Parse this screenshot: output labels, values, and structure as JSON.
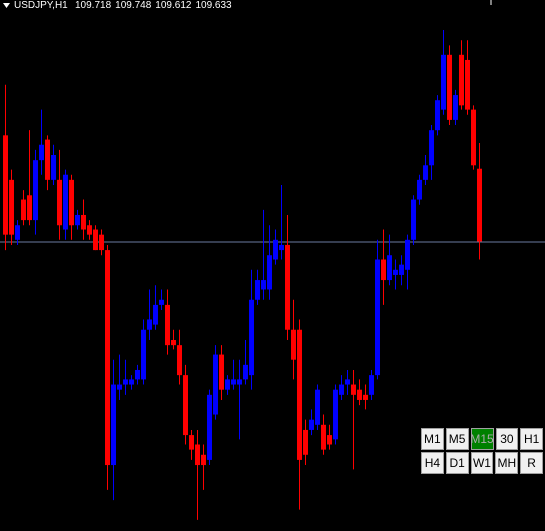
{
  "chart_data": {
    "type": "candlestick",
    "title": "USDJPY,H1",
    "open": [
      109.757,
      109.705,
      109.635,
      109.682,
      109.687,
      109.658,
      109.728,
      109.752,
      109.705,
      109.705,
      109.647,
      109.705,
      109.652,
      109.664,
      109.652,
      109.647,
      109.641,
      109.623,
      109.372,
      109.46,
      109.466,
      109.466,
      109.472,
      109.472,
      109.53,
      109.536,
      109.559,
      109.559,
      109.518,
      109.512,
      109.477,
      109.407,
      109.396,
      109.384,
      109.378,
      109.431,
      109.501,
      109.46,
      109.466,
      109.466,
      109.472,
      109.477,
      109.565,
      109.577,
      109.577,
      109.612,
      109.623,
      109.629,
      109.53,
      109.53,
      109.413,
      109.413,
      109.419,
      109.419,
      109.407,
      109.402,
      109.454,
      109.466,
      109.466,
      109.46,
      109.454,
      109.454,
      109.477,
      109.612,
      109.588,
      109.594,
      109.594,
      109.6,
      109.635,
      109.682,
      109.705,
      109.722,
      109.763,
      109.787,
      109.851,
      109.775,
      109.851,
      109.845,
      109.787,
      109.718
    ],
    "high": [
      109.816,
      109.717,
      109.658,
      109.693,
      109.763,
      109.74,
      109.787,
      109.757,
      109.746,
      109.74,
      109.717,
      109.711,
      109.67,
      109.682,
      109.658,
      109.652,
      109.647,
      109.629,
      109.495,
      109.501,
      109.495,
      109.477,
      109.489,
      109.542,
      109.577,
      109.582,
      109.577,
      109.577,
      109.53,
      109.53,
      109.489,
      109.413,
      109.413,
      109.396,
      109.46,
      109.512,
      109.512,
      109.477,
      109.495,
      109.495,
      109.518,
      109.6,
      109.6,
      109.67,
      109.652,
      109.647,
      109.699,
      109.664,
      109.565,
      109.542,
      109.425,
      109.437,
      109.466,
      109.431,
      109.419,
      109.466,
      109.477,
      109.483,
      109.483,
      109.472,
      109.466,
      109.483,
      109.635,
      109.647,
      109.641,
      109.612,
      109.617,
      109.641,
      109.687,
      109.711,
      109.734,
      109.769,
      109.804,
      109.88,
      109.862,
      109.81,
      109.868,
      109.868,
      109.792,
      109.748
    ],
    "low": [
      109.623,
      109.629,
      109.629,
      109.652,
      109.652,
      109.641,
      109.711,
      109.693,
      109.699,
      109.635,
      109.635,
      109.635,
      109.647,
      109.635,
      109.635,
      109.623,
      109.617,
      109.343,
      109.331,
      109.448,
      109.454,
      109.46,
      109.466,
      109.466,
      109.518,
      109.53,
      109.553,
      109.501,
      109.507,
      109.466,
      109.396,
      109.378,
      109.308,
      109.343,
      109.372,
      109.425,
      109.448,
      109.454,
      109.46,
      109.402,
      109.466,
      109.46,
      109.559,
      109.565,
      109.565,
      109.606,
      109.612,
      109.518,
      109.472,
      109.32,
      109.372,
      109.407,
      109.413,
      109.384,
      109.39,
      109.396,
      109.448,
      109.454,
      109.367,
      109.442,
      109.437,
      109.448,
      109.472,
      109.559,
      109.582,
      109.577,
      109.582,
      109.577,
      109.629,
      109.676,
      109.699,
      109.705,
      109.757,
      109.781,
      109.769,
      109.769,
      109.787,
      109.781,
      109.717,
      109.612
    ],
    "close": [
      109.641,
      109.641,
      109.652,
      109.658,
      109.658,
      109.728,
      109.746,
      109.705,
      109.734,
      109.652,
      109.711,
      109.652,
      109.664,
      109.647,
      109.641,
      109.623,
      109.623,
      109.372,
      109.466,
      109.466,
      109.472,
      109.472,
      109.483,
      109.53,
      109.542,
      109.559,
      109.565,
      109.512,
      109.512,
      109.477,
      109.407,
      109.39,
      109.372,
      109.372,
      109.454,
      109.501,
      109.46,
      109.472,
      109.472,
      109.472,
      109.489,
      109.565,
      109.588,
      109.588,
      109.617,
      109.635,
      109.629,
      109.53,
      109.495,
      109.378,
      109.384,
      109.425,
      109.46,
      109.39,
      109.396,
      109.46,
      109.466,
      109.472,
      109.454,
      109.448,
      109.448,
      109.477,
      109.612,
      109.588,
      109.617,
      109.6,
      109.606,
      109.635,
      109.682,
      109.705,
      109.722,
      109.763,
      109.798,
      109.851,
      109.775,
      109.804,
      109.792,
      109.787,
      109.722,
      109.633
    ],
    "up_color": "#0000ff",
    "down_color": "#ff0000",
    "ylim": [
      109.295,
      109.915
    ]
  },
  "buttons": [
    [
      {
        "label": "M1"
      },
      {
        "label": "M5"
      },
      {
        "label": "M15",
        "active": true
      },
      {
        "label": "30"
      },
      {
        "label": "H1"
      }
    ],
    [
      {
        "label": "H4"
      },
      {
        "label": "D1"
      },
      {
        "label": "W1"
      },
      {
        "label": "MH"
      },
      {
        "label": "R"
      }
    ]
  ]
}
